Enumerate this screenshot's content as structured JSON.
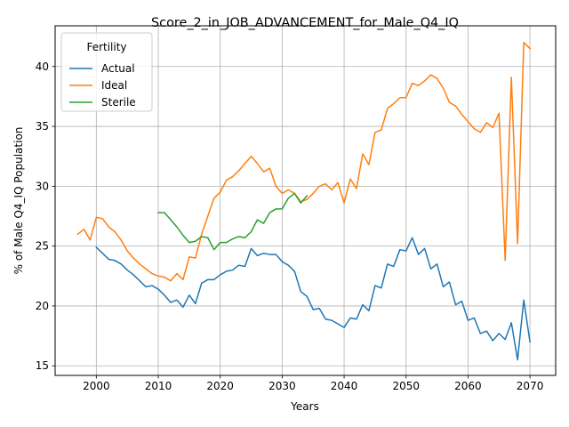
{
  "chart_data": {
    "type": "line",
    "title": "Score_2_in_JOB_ADVANCEMENT_for_Male_Q4_IQ",
    "xlabel": "Years",
    "ylabel": "% of Male Q4_IQ Population",
    "xlim": [
      1993.35,
      2074.15
    ],
    "ylim": [
      14.2,
      43.4
    ],
    "xticks": [
      2000,
      2010,
      2020,
      2030,
      2040,
      2050,
      2060,
      2070
    ],
    "yticks": [
      15,
      20,
      25,
      30,
      35,
      40
    ],
    "grid": true,
    "legend": {
      "title": "Fertility",
      "placement": "top-left"
    },
    "series": [
      {
        "name": "Actual",
        "color": "#1f77b4",
        "x": [
          2000,
          2001,
          2002,
          2003,
          2004,
          2005,
          2006,
          2007,
          2008,
          2009,
          2010,
          2011,
          2012,
          2013,
          2014,
          2015,
          2016,
          2017,
          2018,
          2019,
          2020,
          2021,
          2022,
          2023,
          2024,
          2025,
          2026,
          2027,
          2028,
          2029,
          2030,
          2031,
          2032,
          2033,
          2034,
          2035,
          2036,
          2037,
          2038,
          2039,
          2040,
          2041,
          2042,
          2043,
          2044,
          2045,
          2046,
          2047,
          2048,
          2049,
          2050,
          2051,
          2052,
          2053,
          2054,
          2055,
          2056,
          2057,
          2058,
          2059,
          2060,
          2061,
          2062,
          2063,
          2064,
          2065,
          2066,
          2067,
          2068,
          2069,
          2070
        ],
        "values": [
          24.9,
          24.4,
          23.9,
          23.8,
          23.5,
          23.0,
          22.6,
          22.1,
          21.6,
          21.7,
          21.4,
          20.9,
          20.3,
          20.5,
          19.9,
          20.9,
          20.2,
          21.9,
          22.2,
          22.2,
          22.6,
          22.9,
          23.0,
          23.4,
          23.3,
          24.8,
          24.2,
          24.4,
          24.3,
          24.3,
          23.7,
          23.4,
          22.9,
          21.2,
          20.8,
          19.7,
          19.8,
          18.9,
          18.8,
          18.5,
          18.2,
          19.0,
          18.9,
          20.1,
          19.6,
          21.7,
          21.5,
          23.5,
          23.3,
          24.7,
          24.6,
          25.7,
          24.3,
          24.8,
          23.1,
          23.5,
          21.6,
          22.0,
          20.1,
          20.4,
          18.8,
          19.0,
          17.7,
          17.9,
          17.1,
          17.7,
          17.2,
          18.6,
          15.5,
          20.5,
          17.0
        ]
      },
      {
        "name": "Ideal",
        "color": "#ff7f0e",
        "x": [
          1997,
          1998,
          1999,
          2000,
          2001,
          2002,
          2003,
          2004,
          2005,
          2006,
          2007,
          2008,
          2009,
          2010,
          2011,
          2012,
          2013,
          2014,
          2015,
          2016,
          2017,
          2018,
          2019,
          2020,
          2021,
          2022,
          2023,
          2024,
          2025,
          2026,
          2027,
          2028,
          2029,
          2030,
          2031,
          2032,
          2033,
          2034,
          2035,
          2036,
          2037,
          2038,
          2039,
          2040,
          2041,
          2042,
          2043,
          2044,
          2045,
          2046,
          2047,
          2048,
          2049,
          2050,
          2051,
          2052,
          2053,
          2054,
          2055,
          2056,
          2057,
          2058,
          2059,
          2060,
          2061,
          2062,
          2063,
          2064,
          2065,
          2066,
          2067,
          2068,
          2069,
          2070
        ],
        "values": [
          26.0,
          26.4,
          25.5,
          27.4,
          27.3,
          26.6,
          26.2,
          25.5,
          24.6,
          24.0,
          23.5,
          23.1,
          22.7,
          22.5,
          22.4,
          22.1,
          22.7,
          22.2,
          24.1,
          24.0,
          26.0,
          27.5,
          29.0,
          29.5,
          30.5,
          30.8,
          31.3,
          31.9,
          32.5,
          31.9,
          31.2,
          31.5,
          30.0,
          29.4,
          29.7,
          29.4,
          28.7,
          28.9,
          29.4,
          30.0,
          30.2,
          29.7,
          30.3,
          28.6,
          30.6,
          29.8,
          32.7,
          31.8,
          34.5,
          34.7,
          36.5,
          36.9,
          37.4,
          37.4,
          38.6,
          38.4,
          38.8,
          39.3,
          39.0,
          38.2,
          37.0,
          36.7,
          36.0,
          35.4,
          34.8,
          34.5,
          35.3,
          34.9,
          36.1,
          23.8,
          39.1,
          25.2,
          42.0,
          41.5
        ]
      },
      {
        "name": "Sterile",
        "color": "#2ca02c",
        "x": [
          2010,
          2011,
          2012,
          2013,
          2014,
          2015,
          2016,
          2017,
          2018,
          2019,
          2020,
          2021,
          2022,
          2023,
          2024,
          2025,
          2026,
          2027,
          2028,
          2029,
          2030,
          2031,
          2032,
          2033,
          2034
        ],
        "values": [
          27.8,
          27.8,
          27.2,
          26.6,
          25.9,
          25.3,
          25.4,
          25.8,
          25.7,
          24.7,
          25.3,
          25.3,
          25.6,
          25.8,
          25.7,
          26.2,
          27.2,
          26.9,
          27.8,
          28.1,
          28.1,
          29.0,
          29.4,
          28.6,
          29.2
        ]
      }
    ]
  }
}
